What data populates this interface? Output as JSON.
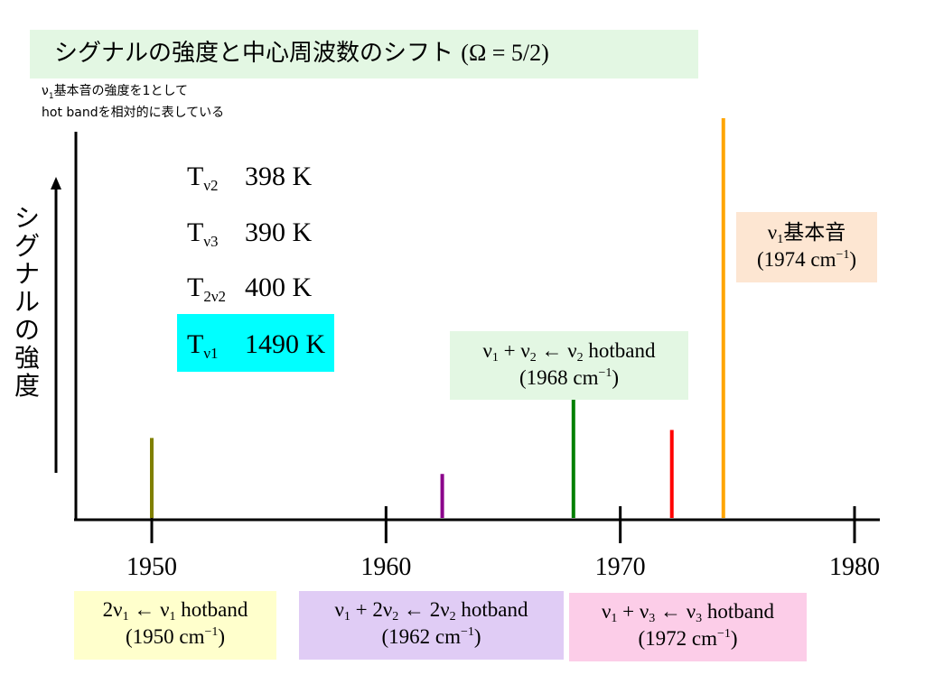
{
  "title": {
    "jp": "シグナルの強度と中心周波数のシフト",
    "formula": "(Ω = 5/2)"
  },
  "note": {
    "line1_a": "ν",
    "line1_sub": "1",
    "line1_b": "基本音の強度を1として",
    "line2": "hot bandを相対的に表している"
  },
  "ylabel": [
    "シ",
    "グ",
    "ナ",
    "ル",
    "の",
    "強",
    "度"
  ],
  "temperatures": [
    {
      "T": "T",
      "sub": "ν2",
      "value": "398 K"
    },
    {
      "T": "T",
      "sub": "ν3",
      "value": "390 K"
    },
    {
      "T": "T",
      "sub": "2ν2",
      "value": "400 K"
    },
    {
      "T": "T",
      "sub": "ν1",
      "value": "1490 K"
    }
  ],
  "highlight_color": "#00ffff",
  "chart_data": {
    "type": "bar",
    "xlabel": "",
    "ylabel": "シグナルの強度",
    "xlim": [
      1946.8,
      1981
    ],
    "ylim": [
      0,
      1
    ],
    "x_ticks": [
      1950,
      1960,
      1970,
      1980
    ],
    "lines": [
      {
        "x": 1950,
        "y": 0.2,
        "color": "#808000"
      },
      {
        "x": 1962.4,
        "y": 0.11,
        "color": "#8b008b"
      },
      {
        "x": 1968,
        "y": 0.31,
        "color": "#008000"
      },
      {
        "x": 1972.2,
        "y": 0.22,
        "color": "#ff0000"
      },
      {
        "x": 1974.4,
        "y": 1.0,
        "color": "#ffa500"
      }
    ]
  },
  "labels": {
    "v1_fund": {
      "name": "基本音",
      "freq": "(1974 cm",
      "close": ")",
      "bg": "#fde6d2"
    },
    "hot_v2": {
      "t1": " + ν",
      "t2": " ← ν",
      "t3": " hotband",
      "freq": "(1968 cm",
      "close": ")",
      "bg": "#e3f7e3"
    },
    "hot_v1": {
      "t0": "2ν",
      "t1": " ← ν",
      "t2": " hotband",
      "freq": "(1950 cm",
      "close": ")",
      "bg": "#ffffcc"
    },
    "hot_2v2": {
      "t1": " + 2ν",
      "t2": " ← 2ν",
      "t3": " hotband",
      "freq": "(1962 cm",
      "close": ")",
      "bg": "#e0ccf5"
    },
    "hot_v3": {
      "t1": " + ν",
      "t2": " ← ν",
      "t3": " hotband",
      "freq": "(1972 cm",
      "close": ")",
      "bg": "#fccde8"
    }
  }
}
